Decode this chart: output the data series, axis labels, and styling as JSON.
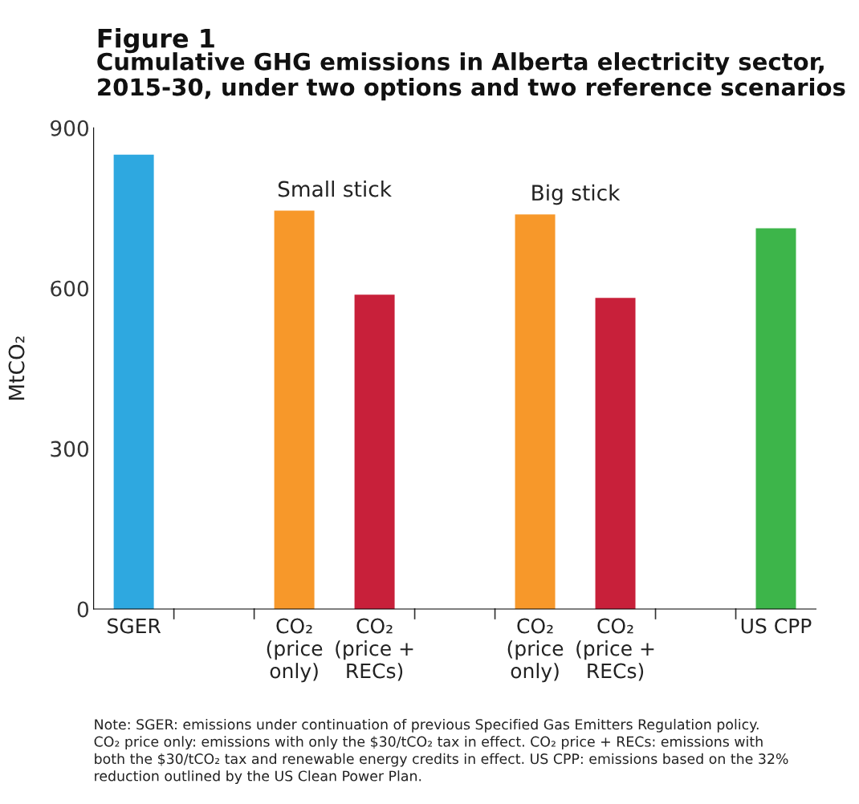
{
  "chart_data": {
    "type": "bar",
    "title": "Figure 1",
    "subtitle": "Cumulative GHG emissions in Alberta electricity sector,\n2015-30, under two options and two reference scenarios",
    "ylabel": "MtCO₂",
    "categories": [
      "SGER",
      null,
      "CO₂\n(price\nonly)",
      "CO₂\n(price +\nRECs)",
      null,
      "CO₂\n(price\nonly)",
      "CO₂\n(price +\nRECs)",
      null,
      "US CPP"
    ],
    "values": [
      850,
      null,
      745,
      588,
      null,
      738,
      582,
      null,
      712
    ],
    "colors": [
      "#2ea8e0",
      null,
      "#f7982a",
      "#c8203a",
      null,
      "#f7982a",
      "#c8203a",
      null,
      "#3db54a"
    ],
    "ylim": [
      0,
      900
    ],
    "yticks": [
      0,
      300,
      600,
      900
    ],
    "grid": false,
    "annotations": [
      "Small stick",
      "Big stick",
      "Note: SGER: emissions under continuation of previous Specified Gas Emitters Regulation policy.\nCO₂ price only: emissions with only the $30/tCO₂ tax in effect. CO₂ price + RECs: emissions with\nboth the $30/tCO₂ tax and renewable energy credits in effect. US CPP: emissions based on the 32%\nreduction outlined by the US Clean Power Plan."
    ]
  }
}
